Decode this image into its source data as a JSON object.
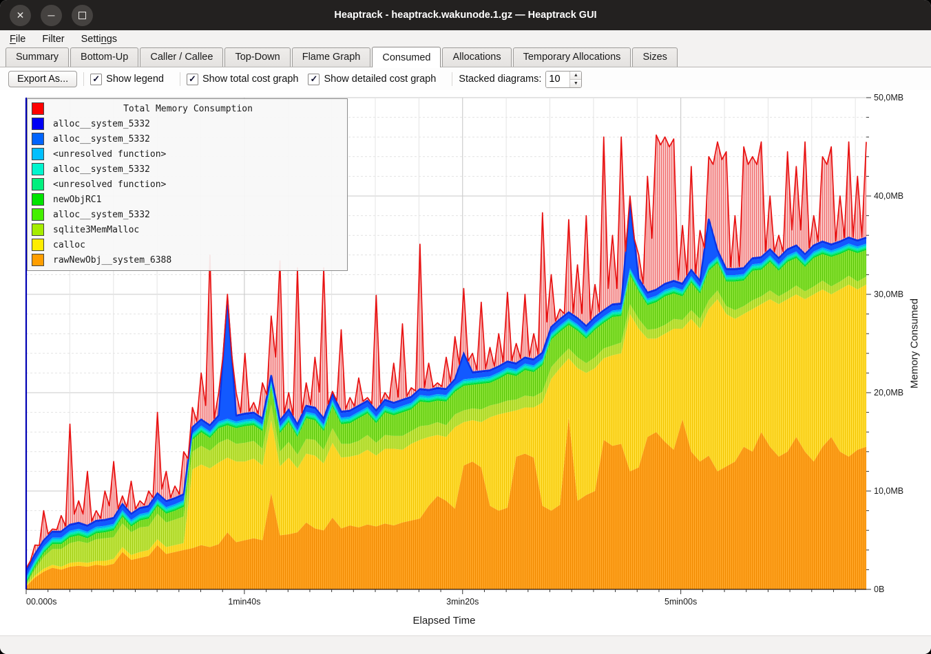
{
  "window": {
    "title": "Heaptrack - heaptrack.wakunode.1.gz — Heaptrack GUI",
    "controls": [
      {
        "name": "close",
        "glyph": "✕"
      },
      {
        "name": "minimize",
        "glyph": "─"
      },
      {
        "name": "maximize",
        "glyph": ""
      }
    ]
  },
  "menubar": {
    "items": [
      {
        "label": "File",
        "underline_index": 0
      },
      {
        "label": "Filter",
        "underline_index": -1
      },
      {
        "label": "Settings",
        "underline_index": 5
      }
    ]
  },
  "tabs": {
    "items": [
      "Summary",
      "Bottom-Up",
      "Caller / Callee",
      "Top-Down",
      "Flame Graph",
      "Consumed",
      "Allocations",
      "Temporary Allocations",
      "Sizes"
    ],
    "active_index": 5
  },
  "toolbar": {
    "export_label": "Export As...",
    "checkboxes": [
      {
        "label": "Show legend",
        "checked": true
      },
      {
        "label": "Show total cost graph",
        "checked": true
      },
      {
        "label": "Show detailed cost graph",
        "checked": true
      }
    ],
    "check_glyph": "✓",
    "stacked_label": "Stacked diagrams:",
    "stacked_value": "10",
    "spin_up_glyph": "▲",
    "spin_down_glyph": "▼"
  },
  "chart_data": {
    "type": "area",
    "subtype": "stacked-detailed-cost",
    "xlabel": "Elapsed Time",
    "ylabel": "Memory Consumed",
    "xlim": [
      0,
      385
    ],
    "ylim": [
      0,
      50
    ],
    "minor_x_step_s": 20,
    "minor_y_step_mb": 2,
    "x_ticks": [
      {
        "label": "00.000s",
        "t": 0
      },
      {
        "label": "1min40s",
        "t": 100
      },
      {
        "label": "3min20s",
        "t": 200
      },
      {
        "label": "5min00s",
        "t": 300
      }
    ],
    "y_ticks": [
      {
        "label": "0B",
        "mb": 0
      },
      {
        "label": "10,0MB",
        "mb": 10
      },
      {
        "label": "20,0MB",
        "mb": 20
      },
      {
        "label": "30,0MB",
        "mb": 30
      },
      {
        "label": "40,0MB",
        "mb": 40
      },
      {
        "label": "50,0MB",
        "mb": 50
      }
    ],
    "t_step_s": 4,
    "legend": [
      {
        "label": "Total Memory Consumption",
        "color": "#FF0000",
        "is_title": true
      },
      {
        "label": "alloc__system_5332",
        "color": "#0000F5"
      },
      {
        "label": "alloc__system_5332",
        "color": "#0064FF"
      },
      {
        "label": "<unresolved function>",
        "color": "#00BFFF"
      },
      {
        "label": "alloc__system_5332",
        "color": "#00F5CE"
      },
      {
        "label": "<unresolved function>",
        "color": "#00F07E"
      },
      {
        "label": "newObjRC1",
        "color": "#00E400"
      },
      {
        "label": "alloc__system_5332",
        "color": "#44F000"
      },
      {
        "label": "sqlite3MemMalloc",
        "color": "#A6ED00"
      },
      {
        "label": "calloc",
        "color": "#FFED00"
      },
      {
        "label": "rawNewObj__system_6388",
        "color": "#FF9E00"
      }
    ],
    "series": [
      {
        "name": "rawNewObj__system_6388",
        "color": "#FFA424",
        "stripe": "#F18A00",
        "values": [
          0.3,
          1.2,
          1.8,
          2.2,
          2.0,
          2.3,
          2.4,
          2.3,
          2.5,
          2.4,
          2.6,
          3.8,
          3.0,
          3.2,
          3.4,
          4.5,
          3.6,
          3.8,
          4.0,
          4.2,
          4.5,
          4.3,
          4.6,
          5.8,
          4.8,
          5.0,
          5.2,
          5.0,
          9.8,
          5.5,
          5.6,
          5.8,
          6.8,
          6.2,
          6.0,
          7.3,
          6.2,
          6.5,
          6.3,
          6.6,
          6.4,
          6.7,
          6.5,
          6.8,
          7.0,
          7.2,
          8.5,
          9.5,
          9.0,
          8.2,
          12.6,
          13.0,
          12.4,
          8.5,
          8.0,
          8.3,
          13.5,
          13.8,
          13.4,
          8.5,
          8.0,
          8.6,
          17.5,
          9.0,
          9.6,
          10.0,
          15.2,
          14.6,
          14.8,
          12.0,
          12.4,
          15.5,
          16.0,
          15.0,
          14.2,
          17.3,
          14.0,
          13.0,
          13.6,
          12.0,
          12.5,
          13.0,
          14.5,
          14.0,
          16.0,
          14.5,
          13.5,
          14.0,
          15.5,
          14.0,
          13.0,
          14.5,
          15.5,
          14.0,
          13.5,
          14.2,
          14.5
        ]
      },
      {
        "name": "calloc",
        "color": "#FFDF3B",
        "stripe": "#F4C400",
        "values": [
          0.1,
          0.2,
          0.3,
          0.3,
          0.3,
          0.4,
          0.4,
          0.4,
          0.4,
          0.5,
          0.5,
          0.5,
          0.5,
          0.6,
          0.6,
          0.6,
          0.7,
          0.7,
          0.7,
          8.0,
          8.2,
          8.0,
          8.3,
          7.6,
          8.2,
          8.0,
          8.1,
          7.6,
          7.4,
          7.0,
          7.8,
          6.5,
          7.0,
          7.4,
          6.8,
          7.6,
          7.2,
          7.0,
          7.4,
          7.6,
          7.2,
          7.6,
          7.8,
          7.4,
          7.8,
          8.0,
          7.0,
          6.2,
          6.5,
          8.3,
          4.4,
          4.2,
          4.6,
          9.0,
          9.8,
          9.7,
          4.7,
          4.7,
          5.1,
          10.5,
          13.4,
          13.9,
          6.0,
          13.5,
          12.4,
          12.5,
          8.3,
          9.2,
          9.2,
          16.0,
          14.1,
          10.0,
          9.5,
          11.0,
          12.3,
          9.2,
          13.5,
          13.5,
          14.9,
          17.5,
          15.5,
          14.5,
          13.5,
          14.5,
          13.0,
          15.0,
          15.5,
          15.5,
          14.5,
          15.5,
          17.0,
          16.0,
          14.5,
          16.5,
          17.5,
          16.3,
          16.5
        ]
      },
      {
        "name": "sqlite3MemMalloc",
        "color": "#C3E94A",
        "stripe": "#A3CC12",
        "values": [
          0.1,
          0.6,
          1.2,
          1.6,
          1.8,
          2.0,
          2.1,
          2.0,
          2.2,
          2.3,
          2.2,
          2.4,
          2.3,
          2.5,
          2.4,
          2.6,
          2.5,
          2.6,
          2.7,
          1.8,
          1.9,
          1.8,
          2.0,
          1.9,
          1.8,
          1.9,
          1.8,
          1.7,
          1.6,
          1.5,
          1.6,
          1.4,
          1.5,
          1.6,
          1.4,
          1.5,
          1.4,
          1.3,
          1.4,
          1.5,
          1.3,
          1.4,
          1.3,
          1.4,
          1.3,
          1.4,
          1.2,
          1.3,
          1.2,
          1.3,
          1.2,
          1.2,
          1.3,
          1.2,
          1.1,
          1.2,
          1.1,
          1.2,
          1.1,
          1.1,
          1.2,
          1.1,
          1.0,
          1.1,
          1.0,
          1.1,
          1.0,
          1.0,
          1.1,
          1.0,
          1.0,
          0.9,
          1.0,
          0.9,
          1.0,
          0.9,
          0.9,
          1.0,
          0.9,
          0.9,
          0.8,
          0.9,
          0.8,
          0.9,
          0.8,
          0.9,
          0.8,
          0.8,
          0.9,
          0.8,
          0.8,
          0.9,
          0.8,
          0.8,
          0.9,
          0.8,
          0.8
        ]
      },
      {
        "name": "alloc__system_5332",
        "color": "#8BE437",
        "stripe": "#5CC607",
        "values": [
          0.1,
          0.3,
          0.4,
          0.5,
          0.5,
          0.6,
          0.6,
          0.5,
          0.6,
          0.6,
          0.7,
          0.7,
          0.6,
          0.7,
          0.8,
          0.8,
          0.9,
          0.9,
          1.0,
          1.2,
          1.4,
          1.3,
          1.5,
          1.4,
          1.6,
          1.7,
          1.6,
          1.8,
          1.7,
          1.9,
          2.0,
          1.8,
          2.1,
          2.0,
          1.9,
          2.2,
          2.0,
          2.1,
          2.3,
          2.2,
          2.0,
          2.3,
          2.1,
          2.4,
          2.2,
          2.5,
          2.3,
          2.2,
          2.4,
          2.3,
          2.5,
          2.4,
          2.6,
          2.3,
          2.5,
          2.7,
          2.4,
          2.6,
          2.5,
          2.7,
          2.8,
          2.6,
          2.4,
          2.7,
          2.5,
          2.8,
          2.6,
          2.9,
          2.7,
          3.0,
          2.8,
          2.5,
          2.7,
          2.9,
          2.6,
          2.4,
          2.8,
          2.6,
          3.0,
          2.8,
          2.5,
          2.9,
          2.6,
          3.0,
          2.7,
          2.9,
          2.6,
          3.0,
          2.8,
          2.5,
          2.9,
          2.7,
          3.0,
          2.8,
          2.6,
          2.9,
          2.7
        ]
      },
      {
        "name": "newObjRC1",
        "color": "#00DC32",
        "thickness": 0.15
      },
      {
        "name": "<unresolved function>",
        "color": "#00E87C",
        "thickness": 0.13
      },
      {
        "name": "alloc__system_5332",
        "color": "#00E8C0",
        "thickness": 0.18
      },
      {
        "name": "<unresolved function>",
        "color": "#00B4F5",
        "thickness": 0.2
      },
      {
        "name": "alloc__system_5332",
        "color": "#1259FF",
        "thickness": 0.5,
        "spikes": [
          {
            "i": 23,
            "add": 11.5
          },
          {
            "i": 50,
            "add": 2.0
          },
          {
            "i": 69,
            "add": 6.0
          },
          {
            "i": 78,
            "add": 4.0
          }
        ]
      },
      {
        "name": "alloc__system_5332",
        "color": "#0000D8",
        "thickness": 0.12
      }
    ],
    "total": {
      "name": "Total Memory Consumption",
      "line_color": "#E81212",
      "fill": "#F9C7C7",
      "stripe": "#F06A6A",
      "values": [
        1.2,
        4.5,
        8.0,
        6.0,
        7.5,
        16.8,
        9.0,
        12.0,
        8.0,
        10.0,
        13.0,
        9.5,
        11.0,
        9.0,
        10.0,
        18.0,
        12.0,
        10.5,
        14.0,
        18.5,
        22.0,
        34.0,
        20.0,
        30.0,
        20.0,
        24.0,
        19.0,
        21.0,
        27.8,
        33.4,
        20.0,
        32.7,
        21.0,
        23.6,
        32.7,
        20.0,
        26.4,
        19.5,
        21.5,
        19.5,
        29.9,
        20.0,
        23.0,
        27.0,
        20.5,
        35.1,
        23.0,
        21.0,
        23.6,
        25.7,
        30.6,
        24.0,
        29.2,
        24.6,
        26.0,
        30.2,
        25.0,
        30.0,
        26.0,
        38.3,
        32.0,
        28.5,
        37.6,
        33.0,
        38.0,
        31.0,
        46.0,
        36.0,
        46.0,
        40.0,
        34.0,
        42.0,
        46.2,
        46.0,
        45.8,
        37.0,
        43.0,
        36.5,
        44.0,
        45.5,
        44.5,
        38.0,
        45.0,
        44.0,
        45.5,
        40.0,
        36.0,
        44.5,
        43.0,
        45.5,
        38.0,
        44.0,
        45.0,
        40.0,
        45.5,
        42.0,
        45.5
      ]
    }
  }
}
